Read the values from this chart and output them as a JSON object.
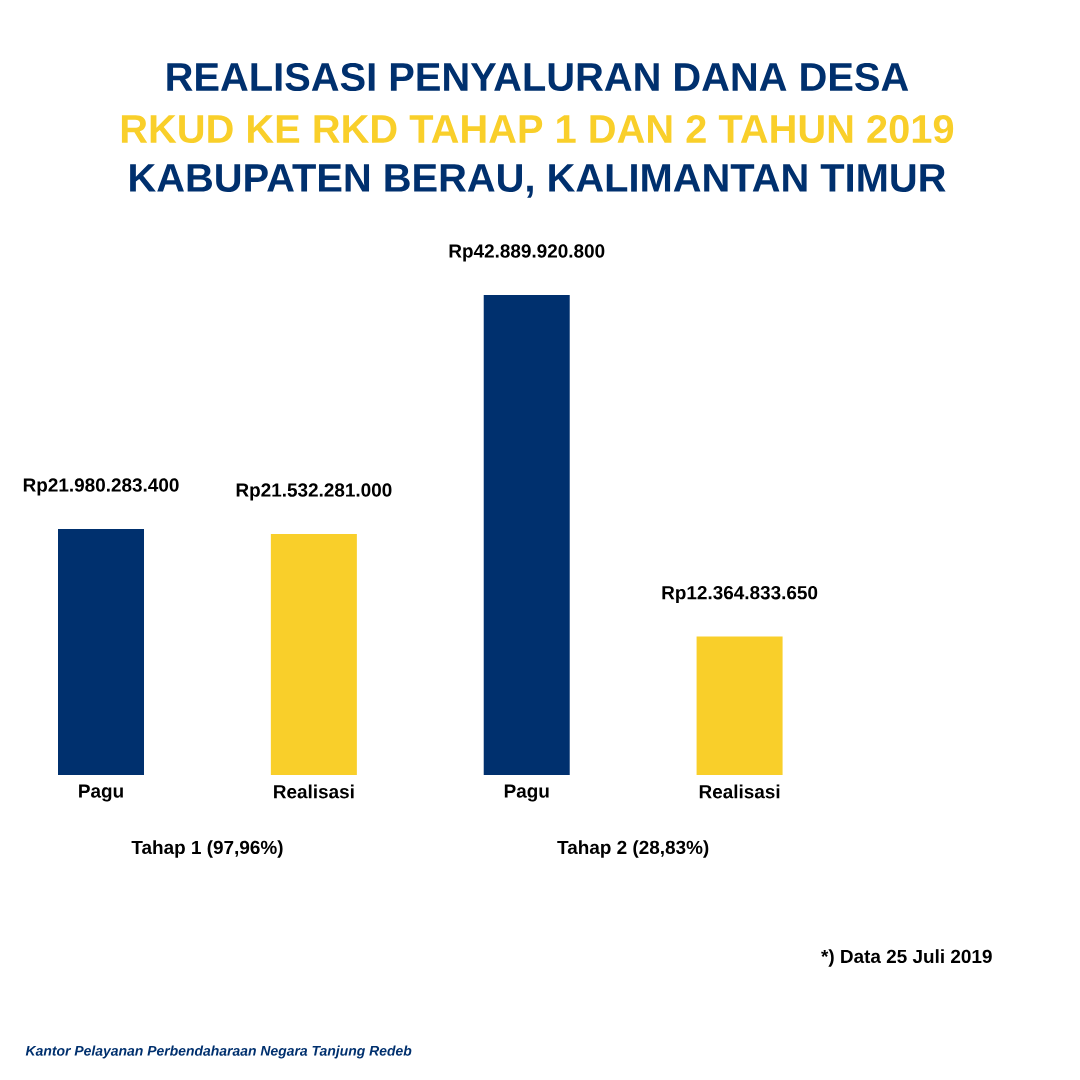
{
  "chart_data": {
    "type": "bar",
    "title": "REALISASI PENYALURAN DANA DESA",
    "subtitle": "RKUD KE RKD TAHAP 1 DAN 2 TAHUN 2019",
    "categories": [
      "Pagu",
      "Realisasi",
      "Pagu",
      "Realisasi"
    ],
    "values": [
      21980283400,
      21532281000,
      42889920800,
      12364833650
    ],
    "colors": [
      "#00306e",
      "#f9cf2a",
      "#00306e",
      "#f9cf2a"
    ],
    "value_labels": [
      "Rp21.980.283.400",
      "Rp21.532.281.000",
      "Rp42.889.920.800",
      "Rp12.364.833.650"
    ],
    "annotations": [
      "KABUPATEN BERAU, KALIMANTAN TIMUR",
      "Tahap 1 (97,96%)",
      "Tahap 2 (28,83%)",
      "*) Data 25 Juli 2019",
      "Kantor Pelayanan Perbendaharaan Negara Tanjung Redeb"
    ]
  }
}
